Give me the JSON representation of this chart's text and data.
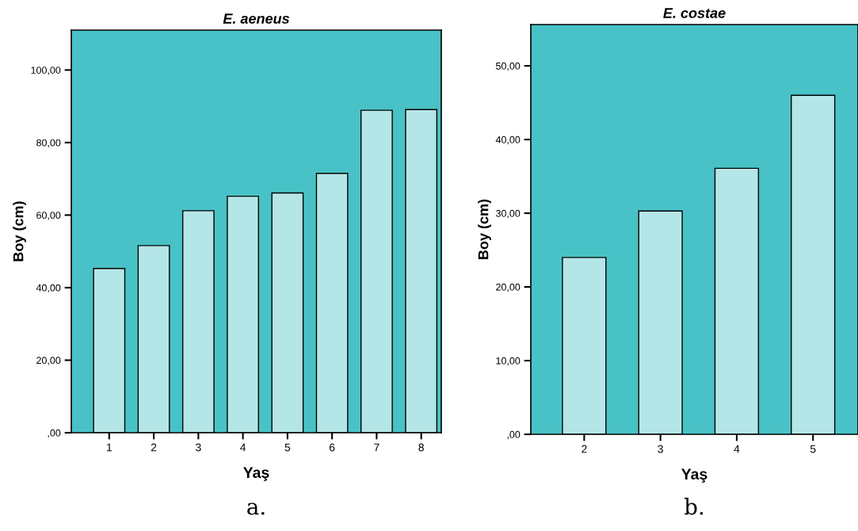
{
  "chart_data": [
    {
      "type": "bar",
      "title": "E. aeneus",
      "xlabel": "Yaş",
      "ylabel": "Boy (cm)",
      "categories": [
        "1",
        "2",
        "3",
        "4",
        "5",
        "6",
        "7",
        "8"
      ],
      "values": [
        45.3,
        51.6,
        61.2,
        65.2,
        66.1,
        71.5,
        88.9,
        89.1
      ],
      "color": "#b5e6e7",
      "ylim": [
        0,
        111
      ],
      "yticks": [
        {
          "value": 0,
          "label": ",00"
        },
        {
          "value": 20,
          "label": "20,00"
        },
        {
          "value": 40,
          "label": "40,00"
        },
        {
          "value": 60,
          "label": "60,00"
        },
        {
          "value": 80,
          "label": "80,00"
        },
        {
          "value": 100,
          "label": "100,00"
        }
      ],
      "annotations": [
        "a."
      ],
      "grid": false,
      "legend": false
    },
    {
      "type": "bar",
      "title": "E. costae",
      "xlabel": "Yaş",
      "ylabel": "Boy (cm)",
      "categories": [
        "2",
        "3",
        "4",
        "5"
      ],
      "values": [
        24.0,
        30.3,
        36.1,
        46.0
      ],
      "color": "#b5e6e7",
      "ylim": [
        0,
        55.6
      ],
      "yticks": [
        {
          "value": 0,
          "label": ",00"
        },
        {
          "value": 10,
          "label": "10,00"
        },
        {
          "value": 20,
          "label": "20,00"
        },
        {
          "value": 30,
          "label": "30,00"
        },
        {
          "value": 40,
          "label": "40,00"
        },
        {
          "value": 50,
          "label": "50,00"
        }
      ],
      "annotations": [
        "b."
      ],
      "grid": false,
      "legend": false
    }
  ]
}
